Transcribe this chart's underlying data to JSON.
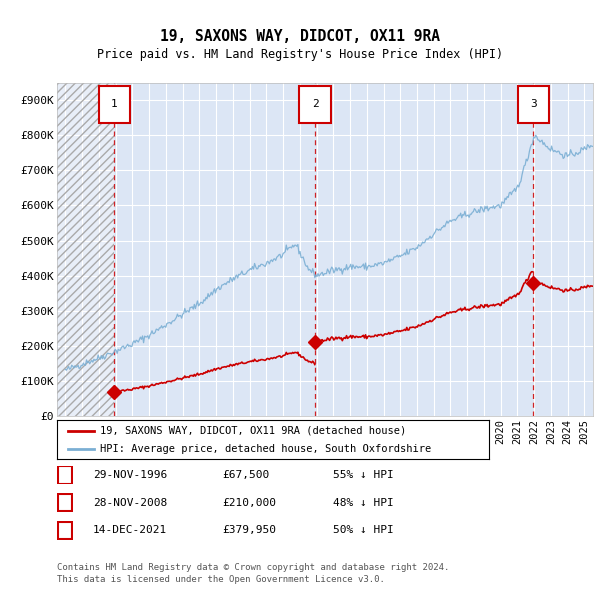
{
  "title": "19, SAXONS WAY, DIDCOT, OX11 9RA",
  "subtitle": "Price paid vs. HM Land Registry's House Price Index (HPI)",
  "sales": [
    {
      "date_num": 1996.91,
      "price": 67500,
      "label": "1",
      "date_str": "29-NOV-1996"
    },
    {
      "date_num": 2008.91,
      "price": 210000,
      "label": "2",
      "date_str": "28-NOV-2008"
    },
    {
      "date_num": 2021.95,
      "price": 379950,
      "label": "3",
      "date_str": "14-DEC-2021"
    }
  ],
  "sale_notes": [
    {
      "label": "1",
      "date": "29-NOV-1996",
      "price": "£67,500",
      "note": "55% ↓ HPI"
    },
    {
      "label": "2",
      "date": "28-NOV-2008",
      "price": "£210,000",
      "note": "48% ↓ HPI"
    },
    {
      "label": "3",
      "date": "14-DEC-2021",
      "price": "£379,950",
      "note": "50% ↓ HPI"
    }
  ],
  "xmin": 1993.5,
  "xmax": 2025.5,
  "ymin": 0,
  "ymax": 950000,
  "yticks": [
    0,
    100000,
    200000,
    300000,
    400000,
    500000,
    600000,
    700000,
    800000,
    900000
  ],
  "ytick_labels": [
    "£0",
    "£100K",
    "£200K",
    "£300K",
    "£400K",
    "£500K",
    "£600K",
    "£700K",
    "£800K",
    "£900K"
  ],
  "legend_line1": "19, SAXONS WAY, DIDCOT, OX11 9RA (detached house)",
  "legend_line2": "HPI: Average price, detached house, South Oxfordshire",
  "footer1": "Contains HM Land Registry data © Crown copyright and database right 2024.",
  "footer2": "This data is licensed under the Open Government Licence v3.0.",
  "red_color": "#cc0000",
  "blue_color": "#7bafd4",
  "bg_color": "#dce6f5",
  "hpi_base_years": [
    1994,
    1995,
    1996,
    1997,
    1998,
    1999,
    2000,
    2001,
    2002,
    2003,
    2004,
    2005,
    2006,
    2007,
    2007.75,
    2008.5,
    2009,
    2010,
    2011,
    2012,
    2013,
    2014,
    2015,
    2016,
    2017,
    2018,
    2019,
    2020,
    2021,
    2021.5,
    2022,
    2022.5,
    2023,
    2024,
    2025,
    2025.5
  ],
  "hpi_base_vals": [
    130000,
    148000,
    165000,
    185000,
    205000,
    230000,
    260000,
    290000,
    320000,
    360000,
    390000,
    415000,
    435000,
    460000,
    490000,
    420000,
    400000,
    415000,
    425000,
    425000,
    435000,
    455000,
    480000,
    520000,
    555000,
    575000,
    590000,
    600000,
    650000,
    720000,
    800000,
    780000,
    760000,
    740000,
    760000,
    775000
  ],
  "noise_seed": 42,
  "noise_std": 5000
}
